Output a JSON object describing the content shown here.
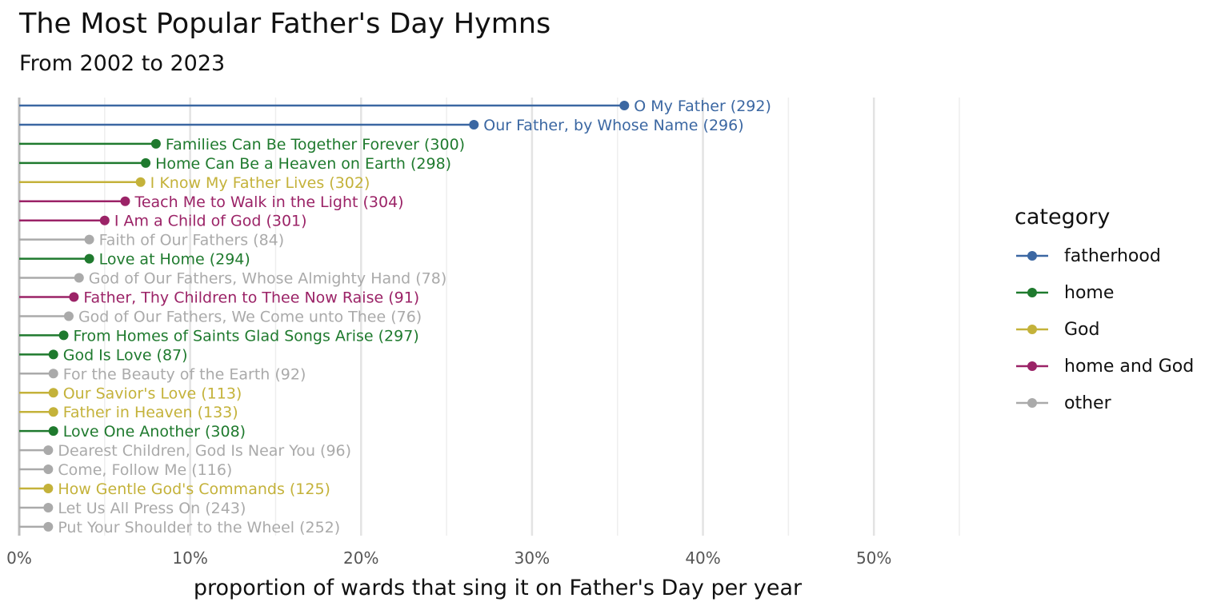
{
  "chart_data": {
    "type": "lollipop",
    "title": "The Most Popular Father's Day Hymns",
    "subtitle": "From 2002 to 2023",
    "xlabel": "proportion of wards that sing it on Father's Day per year",
    "xlim": [
      0,
      0.55
    ],
    "x_ticks": [
      0,
      0.1,
      0.2,
      0.3,
      0.4,
      0.5
    ],
    "x_tick_labels": [
      "0%",
      "10%",
      "20%",
      "30%",
      "40%",
      "50%"
    ],
    "grid": true,
    "legend": {
      "title": "category",
      "placement": "right",
      "entries": [
        {
          "name": "fatherhood",
          "color": "#3b67a2"
        },
        {
          "name": "home",
          "color": "#1f7a2e"
        },
        {
          "name": "God",
          "color": "#c4b23a"
        },
        {
          "name": "home and God",
          "color": "#9b2367"
        },
        {
          "name": "other",
          "color": "#aaaaaa"
        }
      ]
    },
    "points": [
      {
        "label": "O My Father (292)",
        "value": 0.354,
        "category": "fatherhood"
      },
      {
        "label": "Our Father, by Whose Name (296)",
        "value": 0.266,
        "category": "fatherhood"
      },
      {
        "label": "Families Can Be Together Forever (300)",
        "value": 0.08,
        "category": "home"
      },
      {
        "label": "Home Can Be a Heaven on Earth (298)",
        "value": 0.074,
        "category": "home"
      },
      {
        "label": "I Know My Father Lives (302)",
        "value": 0.071,
        "category": "God"
      },
      {
        "label": "Teach Me to Walk in the Light (304)",
        "value": 0.062,
        "category": "home and God"
      },
      {
        "label": "I Am a Child of God (301)",
        "value": 0.05,
        "category": "home and God"
      },
      {
        "label": "Faith of Our Fathers (84)",
        "value": 0.041,
        "category": "other"
      },
      {
        "label": "Love at Home (294)",
        "value": 0.041,
        "category": "home"
      },
      {
        "label": "God of Our Fathers, Whose Almighty Hand (78)",
        "value": 0.035,
        "category": "other"
      },
      {
        "label": "Father, Thy Children to Thee Now Raise (91)",
        "value": 0.032,
        "category": "home and God"
      },
      {
        "label": "God of Our Fathers, We Come unto Thee (76)",
        "value": 0.029,
        "category": "other"
      },
      {
        "label": "From Homes of Saints Glad Songs Arise (297)",
        "value": 0.026,
        "category": "home"
      },
      {
        "label": "God Is Love (87)",
        "value": 0.02,
        "category": "home"
      },
      {
        "label": "For the Beauty of the Earth (92)",
        "value": 0.02,
        "category": "other"
      },
      {
        "label": "Our Savior's Love (113)",
        "value": 0.02,
        "category": "God"
      },
      {
        "label": "Father in Heaven (133)",
        "value": 0.02,
        "category": "God"
      },
      {
        "label": "Love One Another (308)",
        "value": 0.02,
        "category": "home"
      },
      {
        "label": "Dearest Children, God Is Near You (96)",
        "value": 0.017,
        "category": "other"
      },
      {
        "label": "Come, Follow Me (116)",
        "value": 0.017,
        "category": "other"
      },
      {
        "label": "How Gentle God's Commands (125)",
        "value": 0.017,
        "category": "God"
      },
      {
        "label": "Let Us All Press On (243)",
        "value": 0.017,
        "category": "other"
      },
      {
        "label": "Put Your Shoulder to the Wheel (252)",
        "value": 0.017,
        "category": "other"
      }
    ]
  }
}
